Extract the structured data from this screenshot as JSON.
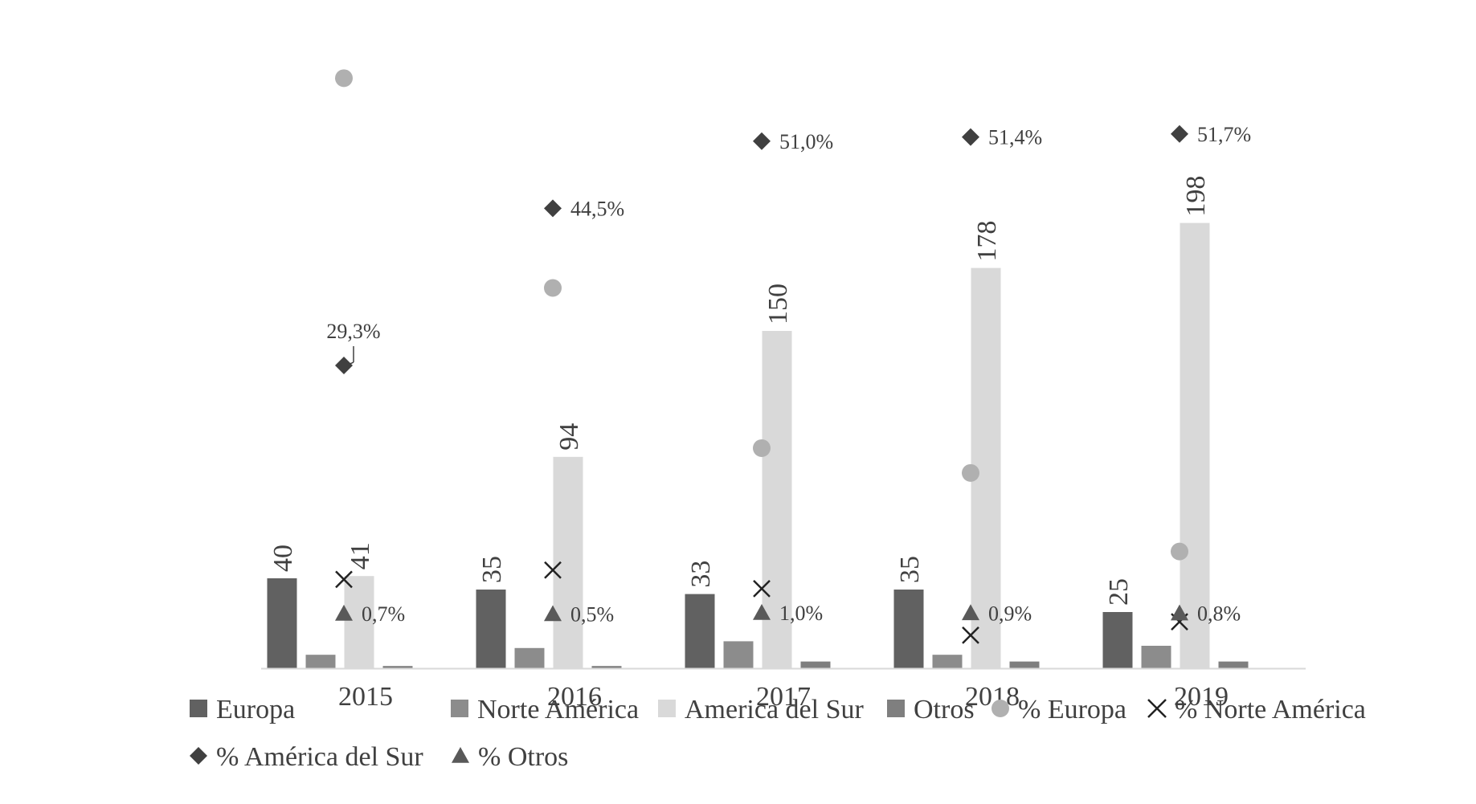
{
  "chart_data": {
    "type": "bar",
    "categories": [
      "2015",
      "2016",
      "2017",
      "2018",
      "2019"
    ],
    "series": [
      {
        "name": "Europa",
        "values": [
          40,
          35,
          33,
          35,
          25
        ],
        "color": "#616161"
      },
      {
        "name": "Norte América",
        "values": [
          6,
          9,
          12,
          6,
          10
        ],
        "color": "#8c8c8c"
      },
      {
        "name": "America del Sur",
        "values": [
          41,
          94,
          150,
          178,
          198
        ],
        "color": "#d9d9d9"
      },
      {
        "name": "Otros",
        "values": [
          1,
          1,
          3,
          3,
          3
        ],
        "color": "#7f7f7f"
      }
    ],
    "bar_labels": {
      "Europa": [
        "40",
        "35",
        "33",
        "35",
        "25"
      ],
      "America del Sur": [
        "41",
        "94",
        "150",
        "178",
        "198"
      ]
    },
    "pct_series": [
      {
        "name": "% Europa",
        "marker": "circle",
        "color": "#b0b0b0",
        "values": [
          57.1,
          36.8,
          21.3,
          18.9,
          11.3
        ]
      },
      {
        "name": "% Norte América",
        "marker": "x",
        "color": "#222222",
        "values": [
          8.6,
          9.5,
          7.7,
          3.2,
          4.5
        ]
      },
      {
        "name": "% América del Sur",
        "marker": "diamond",
        "color": "#404040",
        "values": [
          29.3,
          44.5,
          51.0,
          51.4,
          51.7
        ],
        "labels": [
          "29,3%",
          "44,5%",
          "51,0%",
          "51,4%",
          "51,7%"
        ]
      },
      {
        "name": "% Otros",
        "marker": "triangle",
        "color": "#595959",
        "values": [
          0.7,
          0.5,
          1.0,
          0.9,
          0.8
        ],
        "labels": [
          "0,7%",
          "0,5%",
          "1,0%",
          "0,9%",
          "0,8%"
        ]
      }
    ],
    "bar_ylim": [
      0,
      250
    ],
    "pct_ylim": [
      0,
      60
    ],
    "grid": false,
    "legend_position": "bottom",
    "legend": [
      "Europa",
      "Norte América",
      "America del Sur",
      "Otros",
      "% Europa",
      "% Norte América",
      "% América del Sur",
      "% Otros"
    ]
  }
}
